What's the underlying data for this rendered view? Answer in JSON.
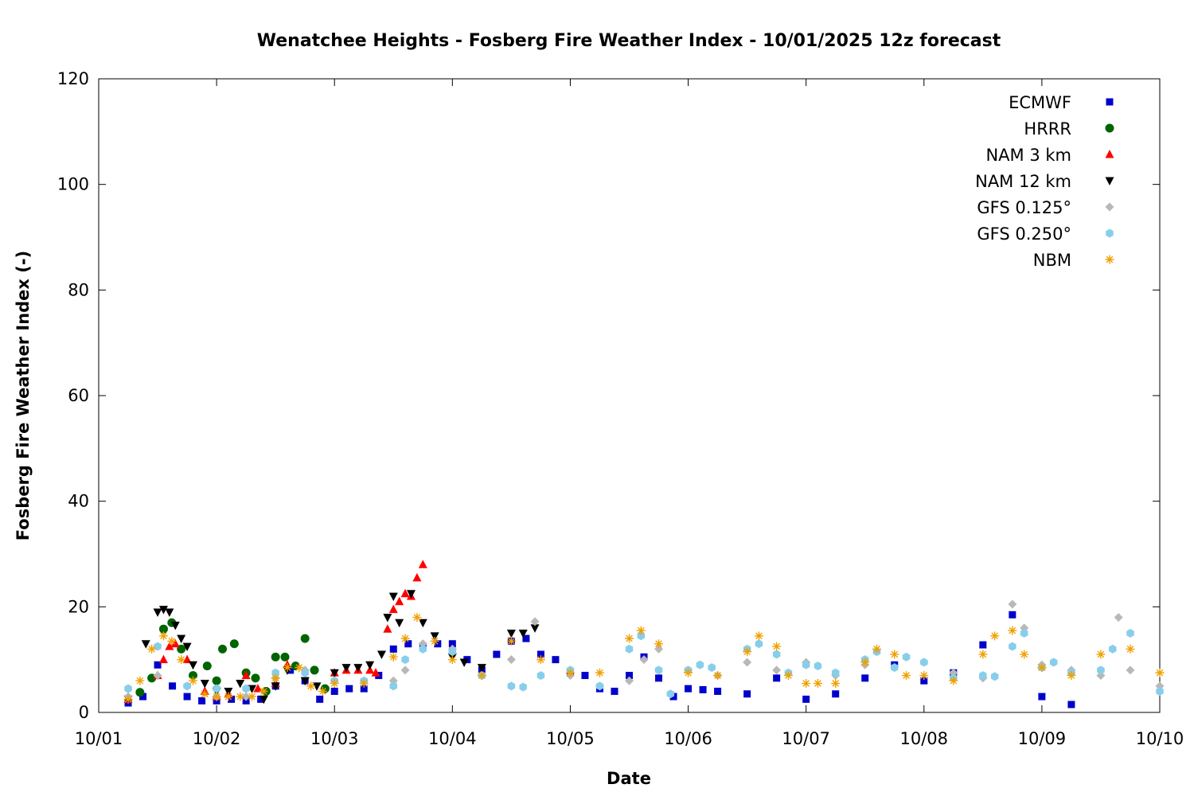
{
  "chart_data": {
    "type": "scatter",
    "title": "Wenatchee Heights - Fosberg Fire Weather Index - 10/01/2025 12z forecast",
    "xlabel": "Date",
    "ylabel": "Fosberg Fire Weather Index (-)",
    "xlim": [
      "10/01",
      "10/10"
    ],
    "ylim": [
      0,
      120
    ],
    "x_ticks": [
      "10/01",
      "10/02",
      "10/03",
      "10/04",
      "10/05",
      "10/06",
      "10/07",
      "10/08",
      "10/09",
      "10/10"
    ],
    "y_ticks": [
      "0",
      "20",
      "40",
      "60",
      "80",
      "100",
      "120"
    ],
    "grid": false,
    "legend_position": "top-right",
    "series": [
      {
        "name": "ECMWF",
        "marker": "square",
        "color": "#0000cc",
        "x": [
          1.25,
          1.375,
          1.5,
          1.625,
          1.75,
          1.875,
          2.0,
          2.125,
          2.25,
          2.375,
          2.5,
          2.625,
          2.75,
          2.875,
          3.0,
          3.125,
          3.25,
          3.375,
          3.5,
          3.625,
          3.75,
          3.875,
          4.0,
          4.125,
          4.25,
          4.375,
          4.5,
          4.625,
          4.75,
          4.875,
          5.0,
          5.125,
          5.25,
          5.375,
          5.5,
          5.625,
          5.75,
          5.875,
          6.0,
          6.125,
          6.25,
          6.5,
          6.75,
          7.0,
          7.25,
          7.5,
          7.75,
          8.0,
          8.25,
          8.5,
          8.75,
          9.0,
          9.25
        ],
        "y": [
          1.8,
          3.0,
          9.0,
          5.0,
          3.0,
          2.2,
          2.2,
          2.5,
          2.2,
          2.5,
          5.0,
          8.0,
          6.0,
          2.5,
          4.0,
          4.5,
          4.5,
          7.0,
          12.0,
          13.0,
          12.5,
          13.0,
          13.0,
          10.0,
          8.0,
          11.0,
          13.5,
          14.0,
          11.0,
          10.0,
          7.5,
          7.0,
          4.5,
          4.0,
          7.0,
          10.5,
          6.5,
          3.0,
          4.5,
          4.3,
          4.0,
          3.5,
          6.5,
          2.5,
          3.5,
          6.5,
          9.0,
          6.0,
          7.5,
          12.8,
          18.5,
          3.0,
          1.5
        ]
      },
      {
        "name": "HRRR",
        "marker": "circle",
        "color": "#006400",
        "x": [
          1.35,
          1.45,
          1.55,
          1.62,
          1.7,
          1.8,
          1.92,
          2.0,
          2.05,
          2.15,
          2.25,
          2.33,
          2.42,
          2.5,
          2.58,
          2.67,
          2.75,
          2.83,
          2.92
        ],
        "y": [
          3.8,
          6.5,
          15.8,
          17.0,
          12.0,
          7.0,
          8.8,
          6.0,
          12.0,
          13.0,
          7.5,
          6.5,
          4.0,
          10.5,
          10.5,
          8.8,
          14.0,
          8.0,
          4.5
        ]
      },
      {
        "name": "NAM 3 km",
        "marker": "triangle-up",
        "color": "#ff0000",
        "x": [
          1.25,
          1.5,
          1.55,
          1.6,
          1.65,
          1.75,
          1.9,
          2.0,
          2.1,
          2.25,
          2.35,
          2.5,
          2.6,
          3.0,
          3.1,
          3.2,
          3.3,
          3.35,
          3.45,
          3.5,
          3.55,
          3.6,
          3.65,
          3.7,
          3.75
        ],
        "y": [
          2.5,
          7.0,
          10.0,
          12.5,
          13.0,
          10.0,
          4.0,
          3.0,
          3.5,
          7.0,
          4.5,
          5.5,
          9.0,
          7.5,
          8.0,
          8.0,
          8.0,
          7.5,
          15.8,
          19.5,
          21.0,
          22.5,
          22.0,
          25.5,
          28.0
        ]
      },
      {
        "name": "NAM 12 km",
        "marker": "triangle-down",
        "color": "#000000",
        "x": [
          1.25,
          1.4,
          1.5,
          1.55,
          1.6,
          1.65,
          1.7,
          1.75,
          1.8,
          1.9,
          2.0,
          2.1,
          2.2,
          2.3,
          2.4,
          2.5,
          2.6,
          2.75,
          2.85,
          3.0,
          3.1,
          3.2,
          3.3,
          3.4,
          3.45,
          3.5,
          3.55,
          3.65,
          3.75,
          3.85,
          4.0,
          4.1,
          4.25,
          4.5,
          4.6,
          4.7
        ],
        "y": [
          2.5,
          13.0,
          19.0,
          19.5,
          19.0,
          16.5,
          14.0,
          12.5,
          9.0,
          5.5,
          4.0,
          4.0,
          5.5,
          4.5,
          2.5,
          5.0,
          8.0,
          6.0,
          5.0,
          7.5,
          8.5,
          8.5,
          9.0,
          11.0,
          18.0,
          22.0,
          17.0,
          22.5,
          17.0,
          14.5,
          10.5,
          9.5,
          8.5,
          15.0,
          15.0,
          16.0
        ]
      },
      {
        "name": "GFS 0.125°",
        "marker": "diamond",
        "color": "#b8b8b8",
        "x": [
          1.25,
          1.5,
          1.75,
          2.0,
          2.25,
          2.5,
          2.75,
          3.0,
          3.25,
          3.5,
          3.6,
          3.75,
          4.0,
          4.25,
          4.5,
          4.7,
          5.0,
          5.25,
          5.5,
          5.625,
          5.75,
          6.0,
          6.25,
          6.5,
          6.75,
          7.0,
          7.25,
          7.5,
          7.75,
          8.0,
          8.25,
          8.5,
          8.75,
          8.85,
          9.0,
          9.25,
          9.5,
          9.65,
          9.75,
          10.0
        ],
        "y": [
          3.0,
          7.0,
          5.0,
          3.0,
          3.0,
          6.5,
          8.0,
          6.0,
          6.0,
          6.0,
          8.0,
          13.0,
          12.0,
          7.0,
          10.0,
          17.2,
          7.0,
          5.0,
          6.0,
          10.0,
          12.0,
          8.0,
          7.0,
          9.5,
          8.0,
          9.5,
          7.0,
          9.0,
          8.5,
          9.5,
          7.5,
          6.5,
          20.5,
          16.0,
          9.0,
          8.0,
          7.0,
          18.0,
          8.0,
          5.0
        ]
      },
      {
        "name": "GFS 0.250°",
        "marker": "hexagon",
        "color": "#87ceeb",
        "x": [
          1.25,
          1.5,
          1.75,
          2.0,
          2.25,
          2.5,
          2.75,
          3.0,
          3.25,
          3.5,
          3.6,
          3.75,
          4.0,
          4.25,
          4.5,
          4.6,
          4.75,
          5.0,
          5.25,
          5.5,
          5.6,
          5.75,
          5.85,
          6.0,
          6.1,
          6.2,
          6.5,
          6.6,
          6.75,
          6.85,
          7.0,
          7.1,
          7.25,
          7.5,
          7.6,
          7.75,
          7.85,
          8.0,
          8.25,
          8.5,
          8.6,
          8.75,
          8.85,
          9.0,
          9.1,
          9.25,
          9.5,
          9.6,
          9.75,
          10.0
        ],
        "y": [
          4.5,
          12.5,
          5.0,
          4.5,
          4.5,
          7.5,
          7.5,
          6.0,
          6.0,
          5.0,
          10.0,
          12.0,
          11.5,
          7.0,
          5.0,
          4.8,
          7.0,
          8.0,
          5.0,
          12.0,
          14.5,
          8.0,
          3.5,
          8.0,
          9.0,
          8.5,
          12.0,
          13.0,
          11.0,
          7.5,
          9.0,
          8.8,
          7.5,
          10.0,
          11.5,
          8.5,
          10.5,
          9.5,
          6.5,
          7.0,
          6.8,
          12.5,
          15.0,
          8.5,
          9.5,
          7.5,
          8.0,
          12.0,
          15.0,
          4.0
        ]
      },
      {
        "name": "NBM",
        "marker": "star",
        "color": "#f0a000",
        "x": [
          1.25,
          1.35,
          1.45,
          1.55,
          1.62,
          1.7,
          1.8,
          1.9,
          2.0,
          2.1,
          2.2,
          2.3,
          2.4,
          2.5,
          2.6,
          2.7,
          2.8,
          2.9,
          3.0,
          3.25,
          3.5,
          3.6,
          3.7,
          3.85,
          4.0,
          4.25,
          4.5,
          4.75,
          5.0,
          5.25,
          5.5,
          5.6,
          5.75,
          6.0,
          6.25,
          6.5,
          6.6,
          6.75,
          6.85,
          7.0,
          7.1,
          7.25,
          7.5,
          7.6,
          7.75,
          7.85,
          8.0,
          8.25,
          8.5,
          8.6,
          8.75,
          8.85,
          9.0,
          9.25,
          9.5,
          9.75,
          10.0
        ],
        "y": [
          2.5,
          6.0,
          12.0,
          14.5,
          13.5,
          10.0,
          6.0,
          3.5,
          3.0,
          3.0,
          3.0,
          3.0,
          4.0,
          6.5,
          8.5,
          8.5,
          5.0,
          4.0,
          5.5,
          5.5,
          10.5,
          14.0,
          18.0,
          13.5,
          10.0,
          7.0,
          13.5,
          10.0,
          7.5,
          7.5,
          14.0,
          15.5,
          13.0,
          7.5,
          7.0,
          11.5,
          14.5,
          12.5,
          7.0,
          5.5,
          5.5,
          5.5,
          9.5,
          12.0,
          11.0,
          7.0,
          7.0,
          6.0,
          11.0,
          14.5,
          15.5,
          11.0,
          8.5,
          7.0,
          11.0,
          12.0,
          7.5
        ]
      }
    ]
  },
  "colors": {
    "ECMWF": "#0000cc",
    "HRRR": "#006400",
    "NAM 3 km": "#ff0000",
    "NAM 12 km": "#000000",
    "GFS 0.125°": "#b8b8b8",
    "GFS 0.250°": "#87ceeb",
    "NBM": "#f0a000"
  }
}
